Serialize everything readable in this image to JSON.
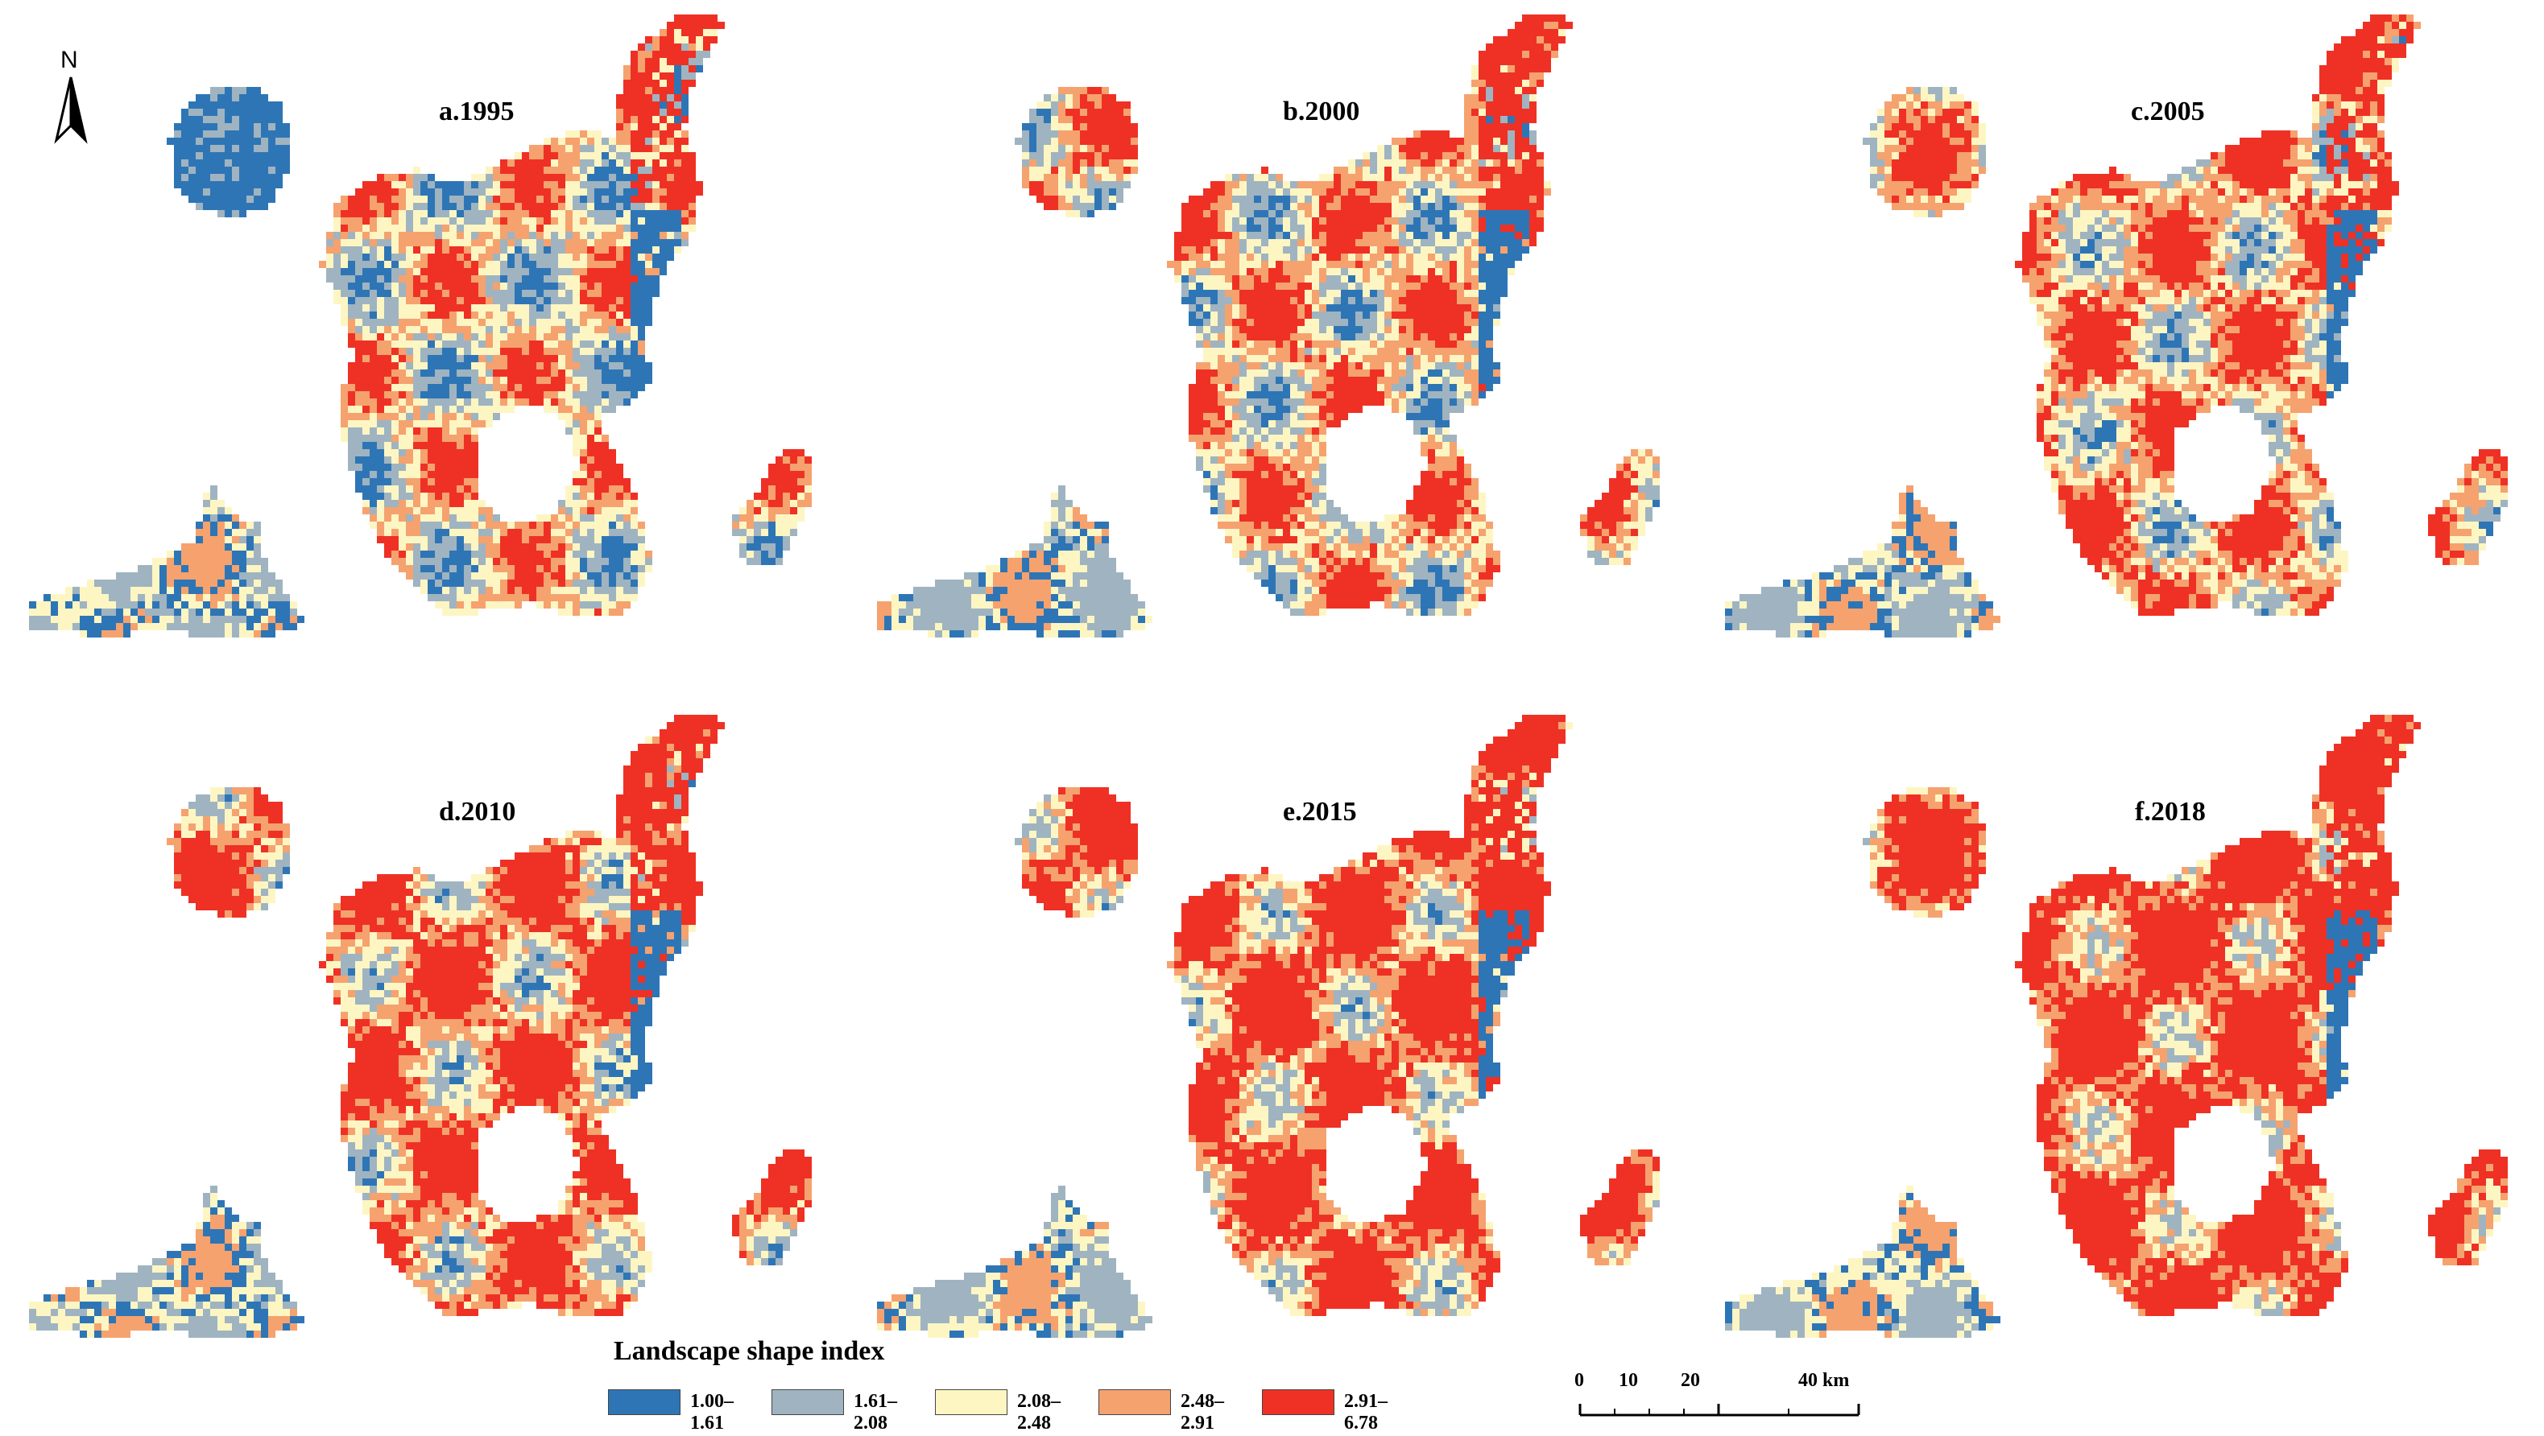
{
  "panels": [
    {
      "id": "a",
      "title": "a.1995"
    },
    {
      "id": "b",
      "title": "b.2000"
    },
    {
      "id": "c",
      "title": "c.2005"
    },
    {
      "id": "d",
      "title": "d.2010"
    },
    {
      "id": "e",
      "title": "e.2015"
    },
    {
      "id": "f",
      "title": "f.2018"
    }
  ],
  "north_arrow": {
    "label": "N"
  },
  "legend": {
    "title": "Landscape shape index",
    "classes": [
      {
        "label": "1.00–1.61",
        "color": "#2e75b6"
      },
      {
        "label": "1.61–2.08",
        "color": "#9fb4c0"
      },
      {
        "label": "2.08–2.48",
        "color": "#fdf6c3"
      },
      {
        "label": "2.48–2.91",
        "color": "#f5a26f"
      },
      {
        "label": "2.91–6.78",
        "color": "#ee3124"
      }
    ]
  },
  "scale_bar": {
    "ticks": [
      "0",
      "10",
      "20",
      "40 km"
    ]
  }
}
